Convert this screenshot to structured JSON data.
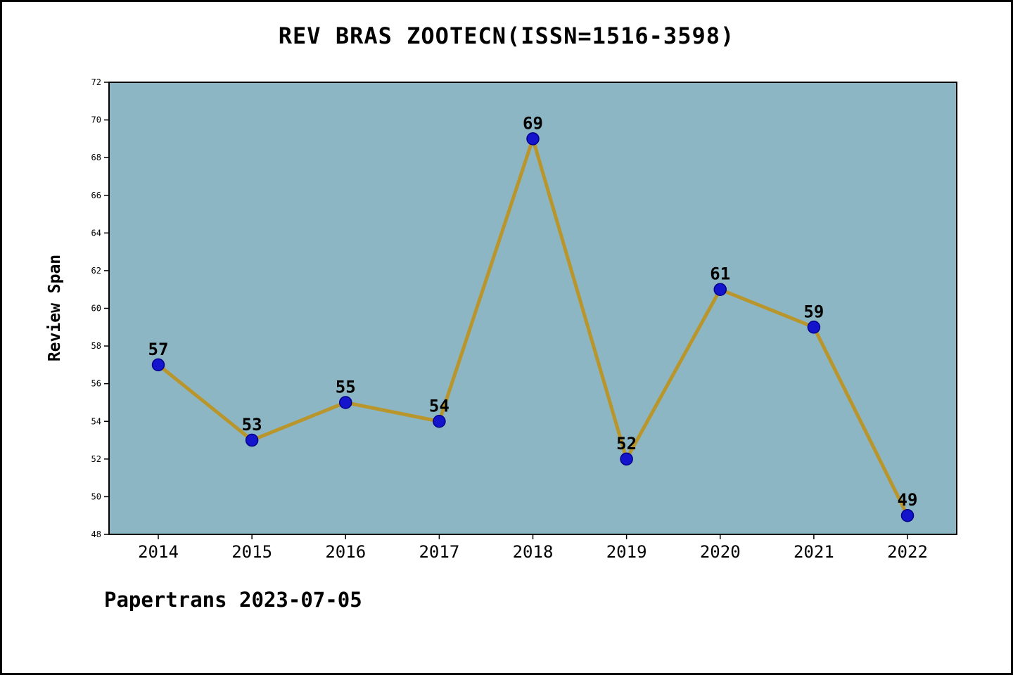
{
  "chart_data": {
    "type": "line",
    "title": "REV BRAS ZOOTECN(ISSN=1516-3598)",
    "ylabel": "Review Span",
    "categories": [
      "2014",
      "2015",
      "2016",
      "2017",
      "2018",
      "2019",
      "2020",
      "2021",
      "2022"
    ],
    "values": [
      57,
      53,
      55,
      54,
      69,
      52,
      61,
      59,
      49
    ],
    "ylim": [
      48,
      72
    ],
    "ytick_step": 2,
    "grid": false,
    "legend": "none",
    "colors": {
      "plot_background": "#8db6c5",
      "line": "#b8962c",
      "marker_fill": "#1414cc",
      "marker_edge": "#00008b",
      "axis": "#000000",
      "text": "#000000"
    }
  },
  "footer": {
    "text": "Papertrans 2023-07-05"
  }
}
